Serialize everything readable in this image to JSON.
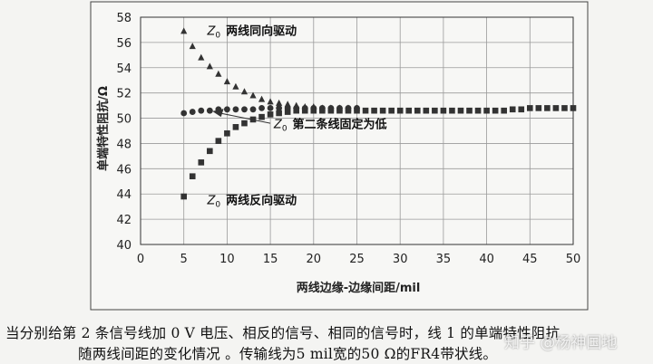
{
  "chart_data": {
    "type": "scatter",
    "title": "",
    "xlabel": "两线边缘-边缘间距/mil",
    "ylabel": "单端特性阻抗/Ω",
    "xlim": [
      0,
      50
    ],
    "ylim": [
      40,
      58
    ],
    "xticks": [
      0,
      5,
      10,
      15,
      20,
      25,
      30,
      35,
      40,
      45,
      50
    ],
    "yticks": [
      40,
      42,
      44,
      46,
      48,
      50,
      52,
      54,
      56,
      58
    ],
    "grid": true,
    "series": [
      {
        "name": "Z0 两线同向驱动",
        "marker": "triangle",
        "x": [
          5,
          6,
          7,
          8,
          9,
          10,
          11,
          12,
          13,
          14,
          15,
          16,
          17,
          18,
          19,
          20,
          21,
          22,
          23,
          24,
          25
        ],
        "y": [
          56.9,
          55.7,
          54.8,
          54.1,
          53.5,
          52.9,
          52.5,
          52.1,
          51.8,
          51.5,
          51.3,
          51.2,
          51.1,
          51.0,
          50.9,
          50.9,
          50.8,
          50.8,
          50.8,
          50.8,
          50.8
        ]
      },
      {
        "name": "Z0 第二条线固定为低",
        "marker": "circle",
        "x": [
          5,
          6,
          7,
          8,
          9,
          10,
          11,
          12,
          13,
          14,
          15,
          16,
          17,
          18,
          19,
          20,
          21,
          22,
          23,
          24,
          25
        ],
        "y": [
          50.4,
          50.5,
          50.6,
          50.6,
          50.7,
          50.7,
          50.7,
          50.7,
          50.7,
          50.8,
          50.8,
          50.8,
          50.8,
          50.8,
          50.8,
          50.8,
          50.8,
          50.8,
          50.8,
          50.8,
          50.8
        ]
      },
      {
        "name": "Z0 两线反向驱动",
        "marker": "square",
        "x": [
          5,
          6,
          7,
          8,
          9,
          10,
          11,
          12,
          13,
          14,
          15,
          16,
          17,
          18,
          19,
          20,
          21,
          22,
          23,
          24,
          25,
          26,
          27,
          28,
          29,
          30,
          31,
          32,
          33,
          34,
          35,
          36,
          37,
          38,
          39,
          40,
          41,
          42,
          43,
          44,
          45,
          46,
          47,
          48,
          49,
          50
        ],
        "y": [
          43.8,
          45.4,
          46.5,
          47.4,
          48.2,
          48.8,
          49.3,
          49.6,
          49.9,
          50.1,
          50.3,
          50.4,
          50.5,
          50.6,
          50.6,
          50.6,
          50.6,
          50.6,
          50.6,
          50.6,
          50.6,
          50.6,
          50.6,
          50.6,
          50.6,
          50.6,
          50.6,
          50.6,
          50.6,
          50.6,
          50.6,
          50.6,
          50.6,
          50.6,
          50.6,
          50.6,
          50.6,
          50.6,
          50.7,
          50.7,
          50.8,
          50.8,
          50.8,
          50.8,
          50.8,
          50.8
        ]
      }
    ],
    "annotations": [
      {
        "sub": "Z",
        "subscript": "0",
        "text": "两线同向驱动",
        "x": 7.7,
        "y": 56.6
      },
      {
        "sub": "Z",
        "subscript": "0",
        "text": "第二条线固定为低",
        "x": 15.4,
        "y": 49.2
      },
      {
        "sub": "Z",
        "subscript": "0",
        "text": "两线反向驱动",
        "x": 7.7,
        "y": 43.2
      }
    ]
  },
  "caption": {
    "line1": "当分别给第 2 条信号线加 0 V 电压、相反的信号、相同的信号时，线 1 的单端特性阻抗",
    "line2": "随两线间距的变化情况 。传输线为5 mil宽的50 Ω的FR4带状线。"
  },
  "watermark": "知乎 @杨神国地"
}
